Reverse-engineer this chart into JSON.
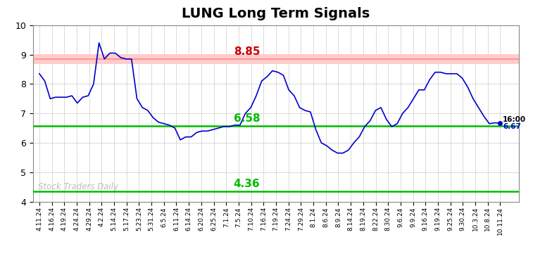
{
  "title": "LUNG Long Term Signals",
  "x_labels": [
    "4.11.24",
    "4.16.24",
    "4.19.24",
    "4.24.24",
    "4.29.24",
    "4.2.24",
    "5.14.24",
    "5.17.24",
    "5.23.24",
    "5.31.24",
    "6.5.24",
    "6.11.24",
    "6.14.24",
    "6.20.24",
    "6.25.24",
    "7.1.24",
    "7.5.24",
    "7.10.24",
    "7.16.24",
    "7.19.24",
    "7.24.24",
    "7.29.24",
    "8.1.24",
    "8.6.24",
    "8.9.24",
    "8.14.24",
    "8.19.24",
    "8.22.24",
    "8.30.24",
    "9.6.24",
    "9.9.24",
    "9.16.24",
    "9.19.24",
    "9.25.24",
    "9.30.24",
    "10.3.24",
    "10.8.24",
    "10.11.24"
  ],
  "detailed_prices": [
    8.35,
    8.1,
    7.5,
    7.55,
    7.55,
    7.55,
    7.6,
    7.35,
    7.55,
    7.6,
    8.0,
    9.4,
    8.85,
    9.05,
    9.05,
    8.9,
    8.85,
    8.85,
    7.5,
    7.2,
    7.1,
    6.85,
    6.7,
    6.65,
    6.6,
    6.5,
    6.1,
    6.2,
    6.2,
    6.35,
    6.4,
    6.4,
    6.45,
    6.5,
    6.55,
    6.55,
    6.6,
    6.6,
    7.0,
    7.2,
    7.6,
    8.1,
    8.25,
    8.45,
    8.4,
    8.3,
    7.8,
    7.6,
    7.2,
    7.1,
    7.05,
    6.45,
    6.0,
    5.9,
    5.75,
    5.65,
    5.65,
    5.75,
    6.0,
    6.2,
    6.55,
    6.75,
    7.1,
    7.2,
    6.8,
    6.55,
    6.65,
    7.0,
    7.2,
    7.5,
    7.8,
    7.8,
    8.15,
    8.4,
    8.4,
    8.35,
    8.35,
    8.35,
    8.2,
    7.9,
    7.5,
    7.2,
    6.9,
    6.65,
    6.68,
    6.67
  ],
  "line_color": "#0000cc",
  "hline_upper_val": 8.85,
  "hline_upper_fill_color": "#ffcccc",
  "hline_upper_line_color": "#ff8888",
  "hline_upper_label_color": "#cc0000",
  "hline_mid_val": 6.58,
  "hline_mid_color": "#00bb00",
  "hline_lower_val": 4.36,
  "hline_lower_color": "#00bb00",
  "watermark": "Stock Traders Daily",
  "watermark_color": "#bbbbbb",
  "last_price": 6.67,
  "last_time": "16:00",
  "last_dot_color": "#0000cc",
  "ylim": [
    4.0,
    10.0
  ],
  "yticks": [
    4,
    5,
    6,
    7,
    8,
    9,
    10
  ],
  "bg_color": "#ffffff",
  "grid_color": "#cccccc"
}
